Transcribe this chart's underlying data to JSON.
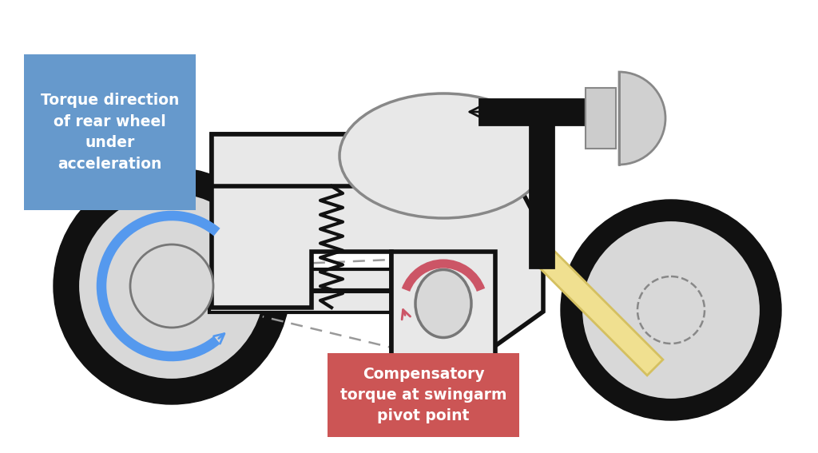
{
  "bg_color": "#ffffff",
  "label_blue_bg": "#6699cc",
  "label_red_bg": "#cc5555",
  "label_text_color": "#ffffff",
  "body_fill": "#e8e8e8",
  "outline": "#111111",
  "wheel_fill": "#d8d8d8",
  "hub_fill": "#d0d0d0",
  "fork_color": "#f0e090",
  "fork_edge": "#d4c060",
  "arrow_blue": "#5599ee",
  "arrow_red": "#cc5566",
  "dashed_color": "#aaaaaa",
  "text_blue": "Torque direction\nof rear wheel\nunder\nacceleration",
  "text_red": "Compensatory\ntorque at swingarm\npivot point"
}
